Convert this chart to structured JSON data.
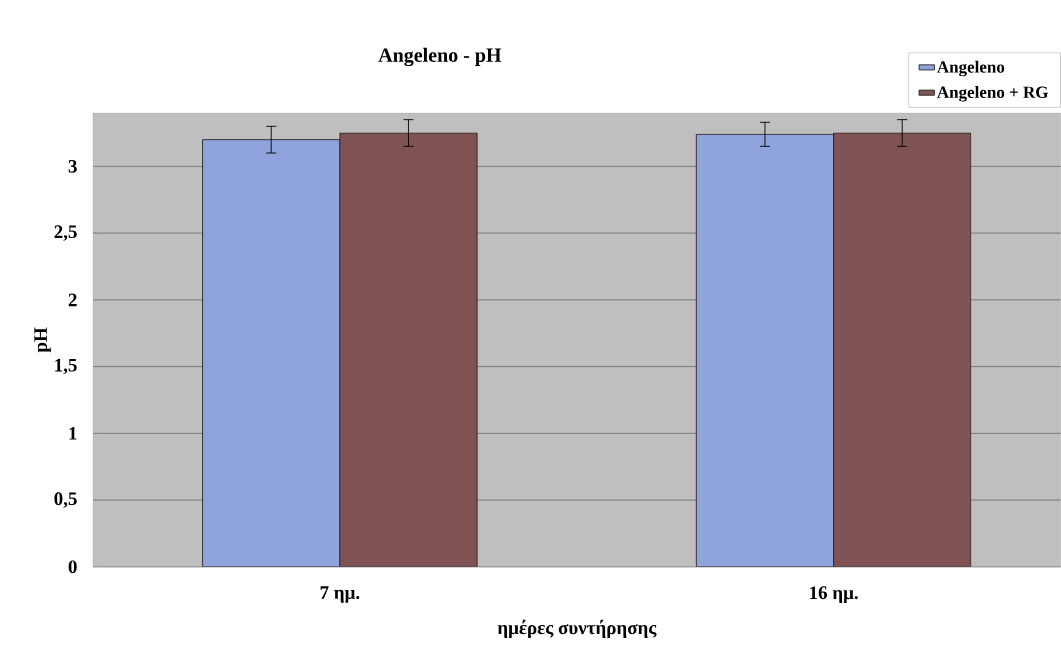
{
  "chart_data": {
    "type": "bar",
    "title": "Angeleno - pH",
    "xlabel": "ημέρες συντήρησης",
    "ylabel": "pH",
    "categories": [
      "7 ημ.",
      "16 ημ."
    ],
    "series": [
      {
        "name": "Angeleno",
        "color": "#8fa3dd",
        "values": [
          3.2,
          3.24
        ],
        "errors": [
          0.1,
          0.09
        ]
      },
      {
        "name": "Angeleno + RG",
        "color": "#7f5353",
        "values": [
          3.25,
          3.25
        ],
        "errors": [
          0.1,
          0.1
        ]
      }
    ],
    "ylim": [
      0,
      3.4
    ],
    "yticks": [
      0,
      {
        "value": 0.5,
        "label": "0,5"
      },
      1,
      {
        "value": 1.5,
        "label": "1,5"
      },
      2,
      {
        "value": 2.5,
        "label": "2,5"
      },
      3
    ],
    "grid": "y",
    "legend": "top right"
  }
}
